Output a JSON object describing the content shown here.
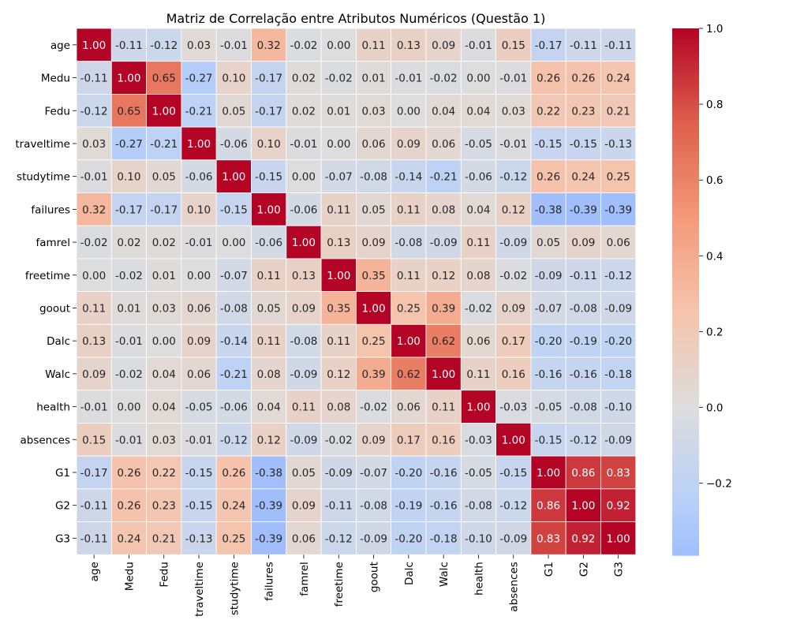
{
  "chart_data": {
    "type": "heatmap",
    "title": "Matriz de Correlação entre Atributos Numéricos (Questão 1)",
    "xlabel": "",
    "ylabel": "",
    "labels": [
      "age",
      "Medu",
      "Fedu",
      "traveltime",
      "studytime",
      "failures",
      "famrel",
      "freetime",
      "goout",
      "Dalc",
      "Walc",
      "health",
      "absences",
      "G1",
      "G2",
      "G3"
    ],
    "matrix": [
      [
        1.0,
        -0.11,
        -0.12,
        0.03,
        -0.01,
        0.32,
        -0.02,
        -0.0,
        0.11,
        0.13,
        0.09,
        -0.01,
        0.15,
        -0.17,
        -0.11,
        -0.11
      ],
      [
        -0.11,
        1.0,
        0.65,
        -0.27,
        0.1,
        -0.17,
        0.02,
        -0.02,
        0.01,
        -0.01,
        -0.02,
        0.0,
        -0.01,
        0.26,
        0.26,
        0.24
      ],
      [
        -0.12,
        0.65,
        1.0,
        -0.21,
        0.05,
        -0.17,
        0.02,
        0.01,
        0.03,
        0.0,
        0.04,
        0.04,
        0.03,
        0.22,
        0.23,
        0.21
      ],
      [
        0.03,
        -0.27,
        -0.21,
        1.0,
        -0.06,
        0.1,
        -0.01,
        0.0,
        0.06,
        0.09,
        0.06,
        -0.05,
        -0.01,
        -0.15,
        -0.15,
        -0.13
      ],
      [
        -0.01,
        0.1,
        0.05,
        -0.06,
        1.0,
        -0.15,
        -0.0,
        -0.07,
        -0.08,
        -0.14,
        -0.21,
        -0.06,
        -0.12,
        0.26,
        0.24,
        0.25
      ],
      [
        0.32,
        -0.17,
        -0.17,
        0.1,
        -0.15,
        1.0,
        -0.06,
        0.11,
        0.05,
        0.11,
        0.08,
        0.04,
        0.12,
        -0.38,
        -0.39,
        -0.39
      ],
      [
        -0.02,
        0.02,
        0.02,
        -0.01,
        -0.0,
        -0.06,
        1.0,
        0.13,
        0.09,
        -0.08,
        -0.09,
        0.11,
        -0.09,
        0.05,
        0.09,
        0.06
      ],
      [
        -0.0,
        -0.02,
        0.01,
        0.0,
        -0.07,
        0.11,
        0.13,
        1.0,
        0.35,
        0.11,
        0.12,
        0.08,
        -0.02,
        -0.09,
        -0.11,
        -0.12
      ],
      [
        0.11,
        0.01,
        0.03,
        0.06,
        -0.08,
        0.05,
        0.09,
        0.35,
        1.0,
        0.25,
        0.39,
        -0.02,
        0.09,
        -0.07,
        -0.08,
        -0.09
      ],
      [
        0.13,
        -0.01,
        0.0,
        0.09,
        -0.14,
        0.11,
        -0.08,
        0.11,
        0.25,
        1.0,
        0.62,
        0.06,
        0.17,
        -0.2,
        -0.19,
        -0.2
      ],
      [
        0.09,
        -0.02,
        0.04,
        0.06,
        -0.21,
        0.08,
        -0.09,
        0.12,
        0.39,
        0.62,
        1.0,
        0.11,
        0.16,
        -0.16,
        -0.16,
        -0.18
      ],
      [
        -0.01,
        0.0,
        0.04,
        -0.05,
        -0.06,
        0.04,
        0.11,
        0.08,
        -0.02,
        0.06,
        0.11,
        1.0,
        -0.03,
        -0.05,
        -0.08,
        -0.1
      ],
      [
        0.15,
        -0.01,
        0.03,
        -0.01,
        -0.12,
        0.12,
        -0.09,
        -0.02,
        0.09,
        0.17,
        0.16,
        -0.03,
        1.0,
        -0.15,
        -0.12,
        -0.09
      ],
      [
        -0.17,
        0.26,
        0.22,
        -0.15,
        0.26,
        -0.38,
        0.05,
        -0.09,
        -0.07,
        -0.2,
        -0.16,
        -0.05,
        -0.15,
        1.0,
        0.86,
        0.83
      ],
      [
        -0.11,
        0.26,
        0.23,
        -0.15,
        0.24,
        -0.39,
        0.09,
        -0.11,
        -0.08,
        -0.19,
        -0.16,
        -0.08,
        -0.12,
        0.86,
        1.0,
        0.92
      ],
      [
        -0.11,
        0.24,
        0.21,
        -0.13,
        0.25,
        -0.39,
        0.06,
        -0.12,
        -0.09,
        -0.2,
        -0.18,
        -0.1,
        -0.09,
        0.83,
        0.92,
        1.0
      ]
    ],
    "value_format": "2 decimals",
    "colormap": "coolwarm",
    "center": 0,
    "vmin": -0.39,
    "vmax": 1.0,
    "colorbar_ticks": [
      1.0,
      0.8,
      0.6,
      0.4,
      0.2,
      0.0,
      -0.2
    ],
    "colorbar_tick_labels": [
      "1.0",
      "0.8",
      "0.6",
      "0.4",
      "0.2",
      "0.0",
      "−0.2"
    ],
    "grid": false,
    "colors": {
      "low": "#3b4cc0",
      "mid": "#dddddd",
      "high": "#b40426"
    }
  }
}
